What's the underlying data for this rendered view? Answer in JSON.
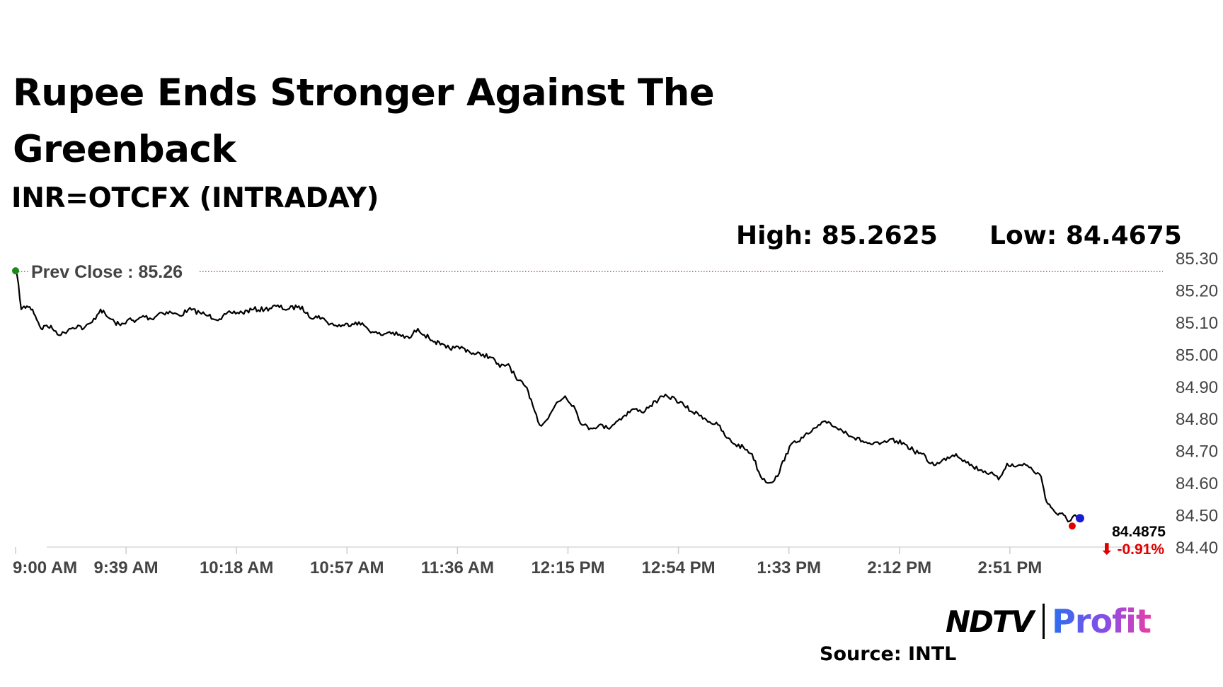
{
  "header": {
    "title": "Rupee Ends Stronger Against The Greenback",
    "subtitle": "INR=OTCFX (INTRADAY)",
    "high_label": "High: 85.2625",
    "low_label": "Low: 84.4675"
  },
  "footer": {
    "source": "Source: INTL",
    "logo_left": "NDTV",
    "logo_right": "Profit"
  },
  "colors": {
    "line": "#000000",
    "prev_close": "#b22222",
    "start_marker": "#1a8a1a",
    "end_marker": "#1c1ccc",
    "change": "#e00000",
    "axis_text": "#444444"
  },
  "chart_data": {
    "type": "line",
    "prev_close_label": "Prev Close : 85.26",
    "prev_close": 85.26,
    "last_value_label": "84.4875",
    "change_label": "⬇ -0.91%",
    "ylim": [
      84.4,
      85.3
    ],
    "y_ticks": [
      "85.30",
      "85.20",
      "85.10",
      "85.00",
      "84.90",
      "84.80",
      "84.70",
      "84.60",
      "84.50",
      "84.40"
    ],
    "x_ticks": [
      "9:00 AM",
      "9:39 AM",
      "10:18 AM",
      "10:57 AM",
      "11:36 AM",
      "12:15 PM",
      "12:54 PM",
      "1:33 PM",
      "2:12 PM",
      "2:51 PM"
    ],
    "x_unit": "minutes after 9:00 AM",
    "x": [
      0,
      1,
      2,
      4,
      6,
      8,
      9,
      11,
      13,
      16,
      19,
      22,
      24,
      27,
      30,
      32,
      35,
      37,
      40,
      42,
      45,
      48,
      51,
      55,
      58,
      61,
      65,
      68,
      72,
      76,
      80,
      84,
      88,
      92,
      96,
      100,
      103,
      105,
      107,
      110,
      113,
      116,
      120,
      123,
      126,
      129,
      132,
      135,
      139,
      142,
      146,
      148,
      150,
      152,
      155,
      158,
      160,
      162,
      165,
      168,
      171,
      174,
      177,
      180,
      182,
      185,
      188,
      191,
      194,
      197,
      200,
      203,
      206,
      209,
      212,
      215,
      218,
      221,
      224,
      227,
      230,
      233,
      236,
      239,
      242,
      245,
      248,
      251,
      254,
      257,
      260,
      263,
      266,
      269,
      272,
      275,
      278,
      281,
      284,
      287,
      290,
      293,
      296,
      299,
      302,
      305,
      308,
      311,
      314,
      317,
      320,
      323,
      326,
      329,
      332,
      335,
      338,
      341,
      344,
      347,
      350,
      353,
      356,
      359,
      362,
      364,
      366,
      368,
      370,
      372,
      374,
      375
    ],
    "y": [
      85.26,
      85.22,
      85.14,
      85.15,
      85.14,
      85.1,
      85.08,
      85.09,
      85.08,
      85.06,
      85.08,
      85.09,
      85.08,
      85.1,
      85.14,
      85.12,
      85.1,
      85.09,
      85.11,
      85.1,
      85.12,
      85.11,
      85.13,
      85.13,
      85.12,
      85.14,
      85.13,
      85.12,
      85.11,
      85.13,
      85.13,
      85.14,
      85.14,
      85.15,
      85.14,
      85.15,
      85.13,
      85.11,
      85.12,
      85.1,
      85.09,
      85.09,
      85.1,
      85.09,
      85.07,
      85.06,
      85.07,
      85.06,
      85.05,
      85.08,
      85.05,
      85.04,
      85.03,
      85.02,
      85.02,
      85.02,
      85.01,
      85.0,
      85.0,
      84.99,
      84.96,
      84.97,
      84.92,
      84.9,
      84.86,
      84.78,
      84.8,
      84.85,
      84.87,
      84.84,
      84.78,
      84.77,
      84.78,
      84.77,
      84.79,
      84.81,
      84.83,
      84.82,
      84.84,
      84.86,
      84.87,
      84.86,
      84.84,
      84.82,
      84.81,
      84.79,
      84.78,
      84.74,
      84.72,
      84.71,
      84.69,
      84.62,
      84.6,
      84.62,
      84.69,
      84.73,
      84.74,
      84.76,
      84.78,
      84.79,
      84.77,
      84.76,
      84.74,
      84.73,
      84.72,
      84.72,
      84.73,
      84.73,
      84.72,
      84.7,
      84.69,
      84.66,
      84.66,
      84.68,
      84.69,
      84.67,
      84.65,
      84.64,
      84.63,
      84.61,
      84.66,
      84.65,
      84.66,
      84.64,
      84.62,
      84.54,
      84.52,
      84.5,
      84.5,
      84.48,
      84.5,
      84.4875
    ]
  }
}
